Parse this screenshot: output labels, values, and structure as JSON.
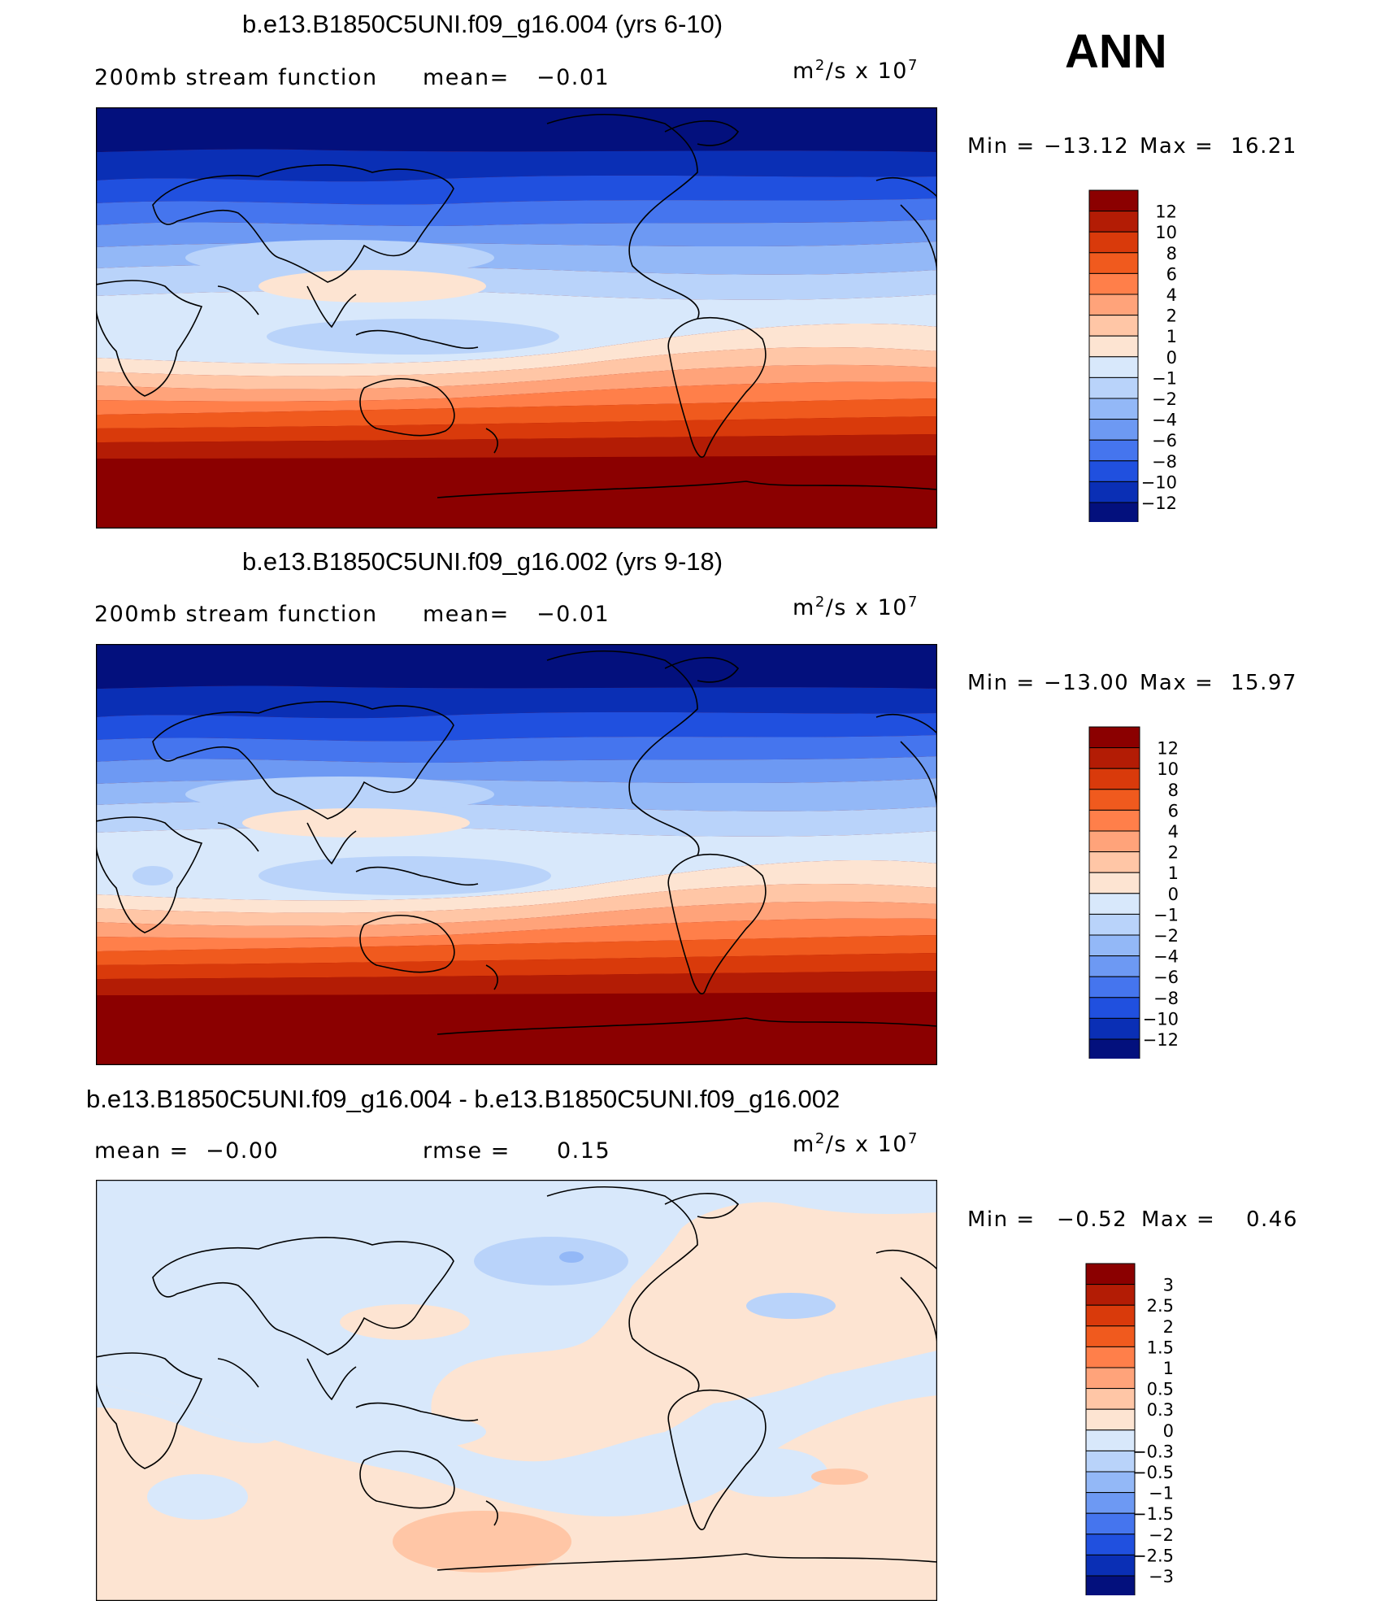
{
  "season_label": "ANN",
  "panels": [
    {
      "title": "b.e13.B1850C5UNI.f09_g16.004 (yrs 6-10)",
      "left_text": "200mb stream function",
      "mid_label": "mean=",
      "mid_value": "−0.01",
      "units_base": "m",
      "units_exp": "2",
      "units_rest": "/s x 10",
      "units_exp2": "7",
      "min_label": "Min =",
      "min_value": "−13.12",
      "max_label": "Max =",
      "max_value": "16.21"
    },
    {
      "title": "b.e13.B1850C5UNI.f09_g16.002 (yrs 9-18)",
      "left_text": "200mb stream function",
      "mid_label": "mean=",
      "mid_value": "−0.01",
      "units_base": "m",
      "units_exp": "2",
      "units_rest": "/s x 10",
      "units_exp2": "7",
      "min_label": "Min =",
      "min_value": "−13.00",
      "max_label": "Max =",
      "max_value": "15.97"
    },
    {
      "title": "b.e13.B1850C5UNI.f09_g16.004 - b.e13.B1850C5UNI.f09_g16.002",
      "left_text": "mean =  −0.00",
      "mid_label": "rmse =",
      "mid_value": "0.15",
      "units_base": "m",
      "units_exp": "2",
      "units_rest": "/s x 10",
      "units_exp2": "7",
      "min_label": "Min =",
      "min_value": "−0.52",
      "max_label": "Max =",
      "max_value": "0.46"
    }
  ],
  "chart_data": [
    {
      "type": "heatmap",
      "title": "b.e13.B1850C5UNI.f09_g16.004 (yrs 6-10)",
      "variable": "200mb stream function",
      "units": "m2/s x 10^7",
      "mean": -0.01,
      "min": -13.12,
      "max": 16.21,
      "colorbar_levels": [
        "12",
        "10",
        "8",
        "6",
        "4",
        "2",
        "1",
        "0",
        "−1",
        "−2",
        "−4",
        "−6",
        "−8",
        "−10",
        "−12"
      ],
      "colorbar_colors": [
        "#8b0000",
        "#b31c05",
        "#d93a0b",
        "#f05a1e",
        "#ff7f4a",
        "#ffa37a",
        "#ffc6a6",
        "#fde4d2",
        "#d8e8fb",
        "#b9d3fa",
        "#93b8f7",
        "#6d99f3",
        "#4575ee",
        "#2050df",
        "#0a2fb5",
        "#03107d"
      ],
      "cells_lat_lon_bands": "zonal bands from -12 (north) to 12 (south)"
    },
    {
      "type": "heatmap",
      "title": "b.e13.B1850C5UNI.f09_g16.002 (yrs 9-18)",
      "variable": "200mb stream function",
      "units": "m2/s x 10^7",
      "mean": -0.01,
      "min": -13.0,
      "max": 15.97,
      "colorbar_levels": [
        "12",
        "10",
        "8",
        "6",
        "4",
        "2",
        "1",
        "0",
        "−1",
        "−2",
        "−4",
        "−6",
        "−8",
        "−10",
        "−12"
      ],
      "colorbar_colors": [
        "#8b0000",
        "#b31c05",
        "#d93a0b",
        "#f05a1e",
        "#ff7f4a",
        "#ffa37a",
        "#ffc6a6",
        "#fde4d2",
        "#d8e8fb",
        "#b9d3fa",
        "#93b8f7",
        "#6d99f3",
        "#4575ee",
        "#2050df",
        "#0a2fb5",
        "#03107d"
      ]
    },
    {
      "type": "heatmap",
      "title": "b.e13.B1850C5UNI.f09_g16.004 - b.e13.B1850C5UNI.f09_g16.002",
      "units": "m2/s x 10^7",
      "mean": -0.0,
      "rmse": 0.15,
      "min": -0.52,
      "max": 0.46,
      "colorbar_levels": [
        "3",
        "2.5",
        "2",
        "1.5",
        "1",
        "0.5",
        "0.3",
        "0",
        "−0.3",
        "−0.5",
        "−1",
        "−1.5",
        "−2",
        "−2.5",
        "−3"
      ],
      "colorbar_colors": [
        "#8b0000",
        "#b31c05",
        "#d93a0b",
        "#f05a1e",
        "#ff7f4a",
        "#ffa37a",
        "#ffc6a6",
        "#fde4d2",
        "#d8e8fb",
        "#b9d3fa",
        "#93b8f7",
        "#6d99f3",
        "#4575ee",
        "#2050df",
        "#0a2fb5",
        "#03107d"
      ]
    }
  ]
}
